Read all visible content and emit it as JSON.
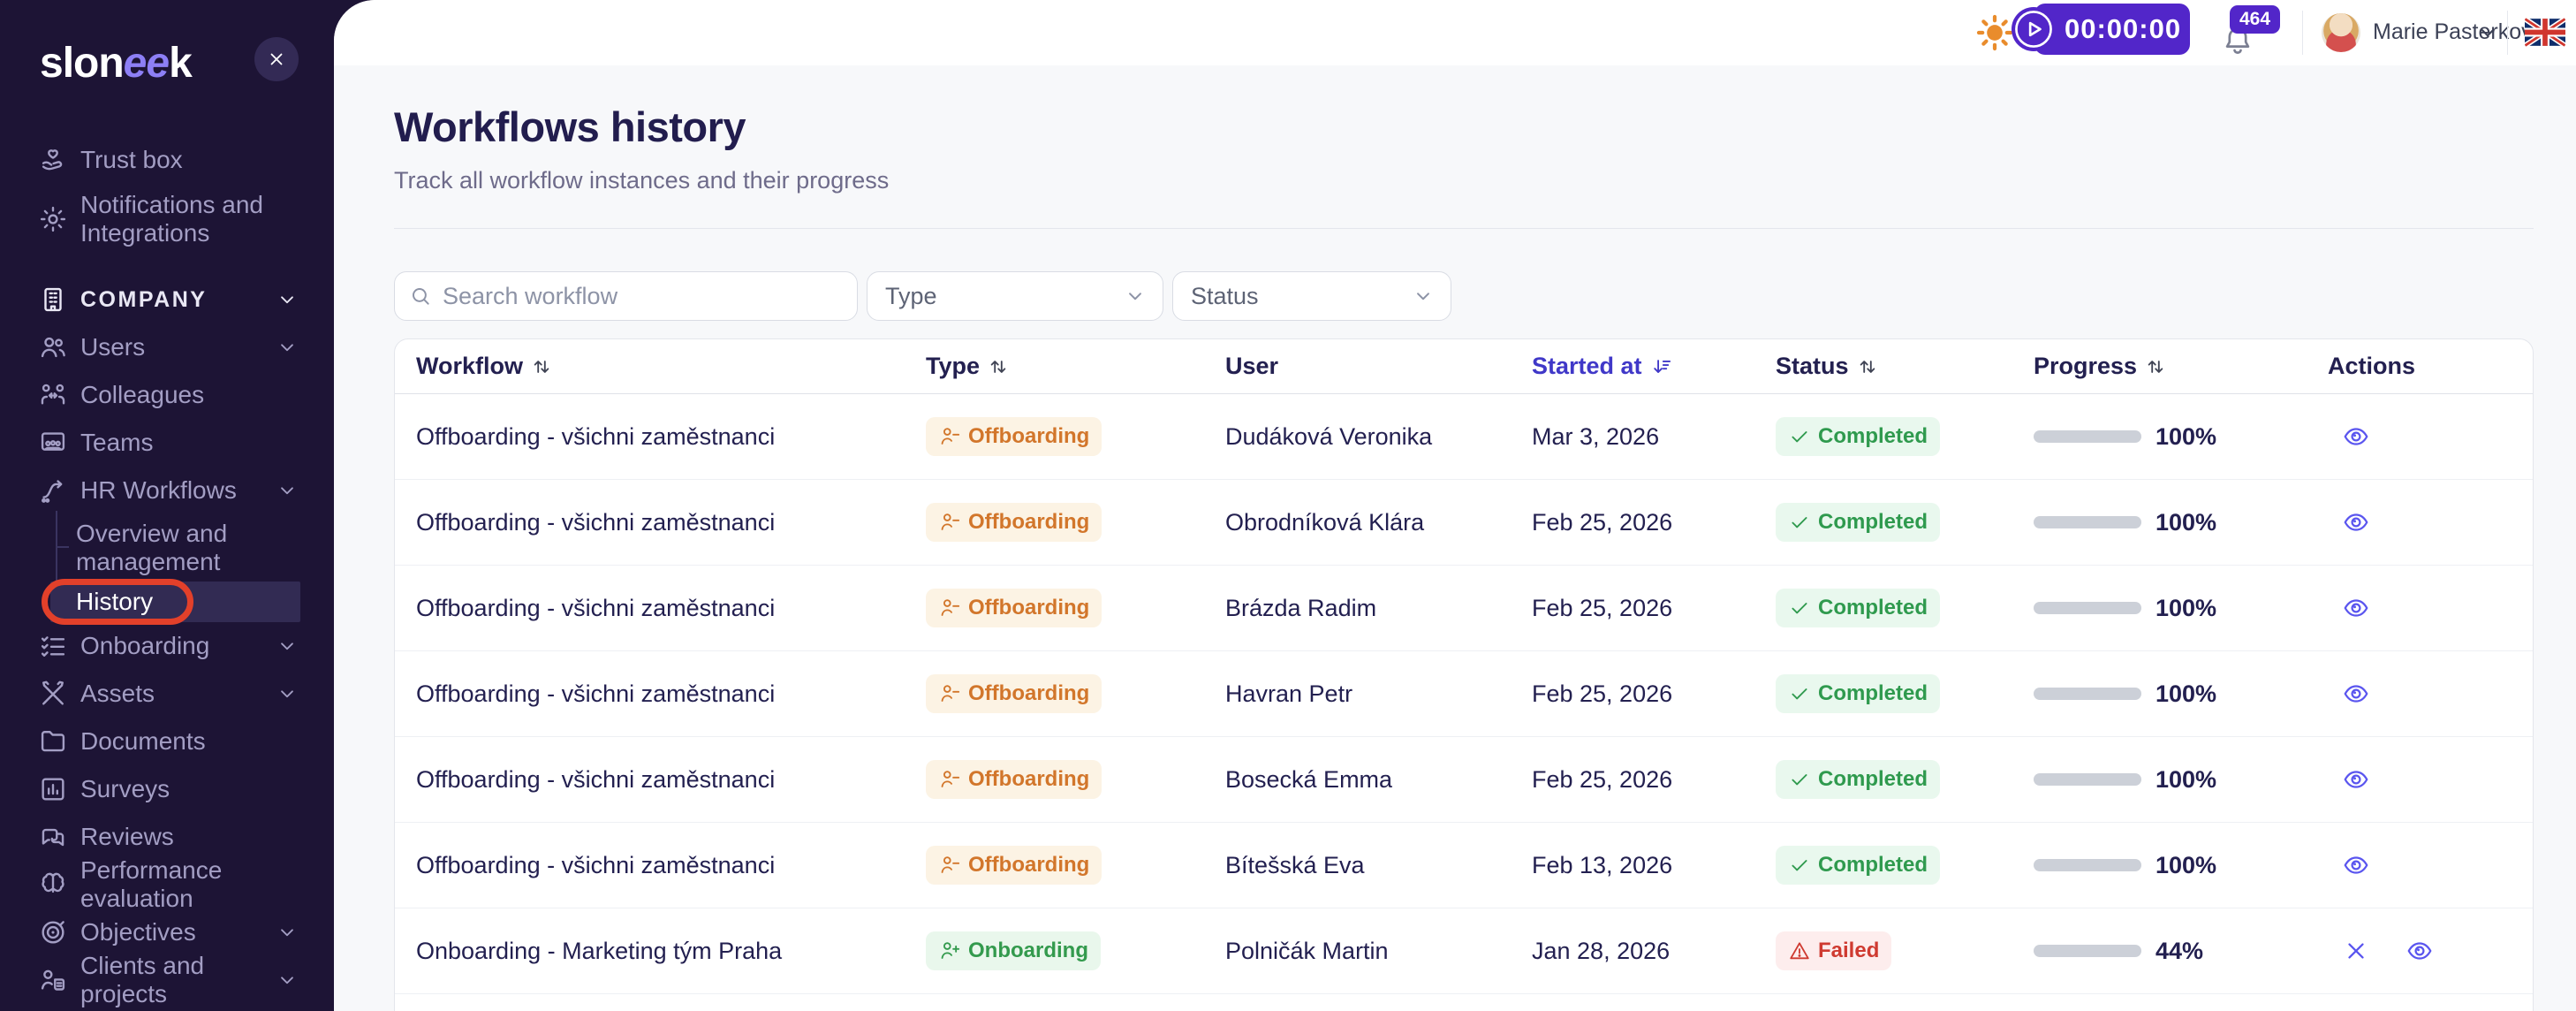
{
  "sidebar": {
    "logo": {
      "prefix": "slon",
      "accent": "ee",
      "suffix": "k"
    },
    "items": [
      {
        "icon": "trust-box-icon",
        "label": "Trust box"
      },
      {
        "icon": "notifications-icon",
        "label": "Notifications and Integrations",
        "two_line": true
      },
      {
        "icon": "company-icon",
        "label": "COMPANY",
        "section": true,
        "chevron": true
      },
      {
        "icon": "users-icon",
        "label": "Users",
        "chevron": true
      },
      {
        "icon": "colleagues-icon",
        "label": "Colleagues"
      },
      {
        "icon": "teams-icon",
        "label": "Teams"
      },
      {
        "icon": "hr-workflows-icon",
        "label": "HR Workflows",
        "chevron": true,
        "children": [
          {
            "label": "Overview and management",
            "two_line": true
          },
          {
            "label": "History",
            "active": true,
            "annotated": true
          }
        ]
      },
      {
        "icon": "onboarding-icon",
        "label": "Onboarding",
        "chevron": true
      },
      {
        "icon": "assets-icon",
        "label": "Assets",
        "chevron": true
      },
      {
        "icon": "documents-icon",
        "label": "Documents"
      },
      {
        "icon": "surveys-icon",
        "label": "Surveys"
      },
      {
        "icon": "reviews-icon",
        "label": "Reviews"
      },
      {
        "icon": "performance-icon",
        "label": "Performance evaluation"
      },
      {
        "icon": "objectives-icon",
        "label": "Objectives",
        "chevron": true
      },
      {
        "icon": "clients-icon",
        "label": "Clients and projects",
        "chevron": true
      }
    ]
  },
  "topbar": {
    "timer": "00:00:00",
    "notifications_count": "464",
    "user_name": "Marie Pasterková",
    "language_flag": "uk-flag-icon"
  },
  "page": {
    "title": "Workflows history",
    "subtitle": "Track all workflow instances and their progress"
  },
  "filters": {
    "search_placeholder": "Search workflow",
    "type_label": "Type",
    "status_label": "Status"
  },
  "table": {
    "columns": [
      {
        "label": "Workflow",
        "sort": "both"
      },
      {
        "label": "Type",
        "sort": "both"
      },
      {
        "label": "User",
        "sort": "none"
      },
      {
        "label": "Started at",
        "sort": "desc-active"
      },
      {
        "label": "Status",
        "sort": "both"
      },
      {
        "label": "Progress",
        "sort": "both"
      },
      {
        "label": "Actions",
        "sort": "none"
      }
    ],
    "rows": [
      {
        "workflow": "Offboarding - všichni zaměstnanci",
        "type": "Offboarding",
        "user": "Dudáková Veronika",
        "started_at": "Mar 3, 2026",
        "status": "Completed",
        "progress": "100%",
        "progress_pct": 100
      },
      {
        "workflow": "Offboarding - všichni zaměstnanci",
        "type": "Offboarding",
        "user": "Obrodníková Klára",
        "started_at": "Feb 25, 2026",
        "status": "Completed",
        "progress": "100%",
        "progress_pct": 100
      },
      {
        "workflow": "Offboarding - všichni zaměstnanci",
        "type": "Offboarding",
        "user": "Brázda Radim",
        "started_at": "Feb 25, 2026",
        "status": "Completed",
        "progress": "100%",
        "progress_pct": 100
      },
      {
        "workflow": "Offboarding - všichni zaměstnanci",
        "type": "Offboarding",
        "user": "Havran Petr",
        "started_at": "Feb 25, 2026",
        "status": "Completed",
        "progress": "100%",
        "progress_pct": 100
      },
      {
        "workflow": "Offboarding - všichni zaměstnanci",
        "type": "Offboarding",
        "user": "Bosecká Emma",
        "started_at": "Feb 25, 2026",
        "status": "Completed",
        "progress": "100%",
        "progress_pct": 100
      },
      {
        "workflow": "Offboarding - všichni zaměstnanci",
        "type": "Offboarding",
        "user": "Bítešská Eva",
        "started_at": "Feb 13, 2026",
        "status": "Completed",
        "progress": "100%",
        "progress_pct": 100
      },
      {
        "workflow": "Onboarding - Marketing tým Praha",
        "type": "Onboarding",
        "user": "Polničák Martin",
        "started_at": "Jan 28, 2026",
        "status": "Failed",
        "progress": "44%",
        "progress_pct": 44
      }
    ]
  },
  "colors": {
    "sidebar_bg": "#1d1435",
    "logo_accent": "#8d7ff5",
    "annotation_red": "#e2402a",
    "brand_purple": "#5226c9",
    "sort_active_indigo": "#4038c8",
    "offboarding_orange": "#d2762b",
    "onboarding_green": "#339a4d",
    "completed_green": "#2f9a4e",
    "failed_red": "#cf3a30",
    "progress_green": "#46945d",
    "progress_orange": "#df9136",
    "action_indigo": "#5a55ef",
    "sun_orange": "#e98c2c"
  }
}
